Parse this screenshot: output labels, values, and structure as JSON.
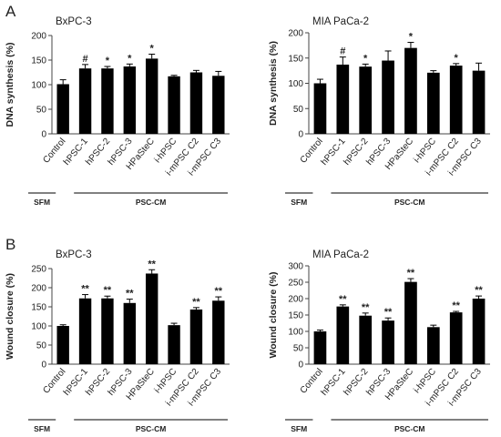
{
  "figure": {
    "group_labels": {
      "control": "SFM",
      "treated": "PSC-CM"
    }
  },
  "chart_data": [
    {
      "panel": "A",
      "type": "bar",
      "title": "BxPC-3",
      "ylabel": "DNA synthesis (%)",
      "ylim": [
        0,
        200
      ],
      "yticks": [
        0,
        50,
        100,
        150,
        200
      ],
      "categories": [
        "Control",
        "hPSC-1",
        "hPSC-2",
        "hPSC-3",
        "HPaSteC",
        "i-hPSC",
        "i-mPSC C2",
        "i-mPSC C3"
      ],
      "values": [
        101,
        133,
        133,
        137,
        153,
        117,
        125,
        118
      ],
      "errors": [
        9,
        8,
        4,
        5,
        9,
        2,
        4,
        9
      ],
      "significance": [
        "",
        "#",
        "*",
        "*",
        "*",
        "",
        "",
        ""
      ]
    },
    {
      "panel": "",
      "type": "bar",
      "title": "MIA PaCa-2",
      "ylabel": "DNA synthesis (%)",
      "ylim": [
        0,
        200
      ],
      "yticks": [
        0,
        50,
        100,
        150,
        200
      ],
      "categories": [
        "Control",
        "hPSC-1",
        "hPSC-2",
        "hPSC-3",
        "HPaSteC",
        "i-hPSC",
        "i-mPSC C2",
        "i-mPSC C3"
      ],
      "values": [
        100,
        137,
        133,
        145,
        170,
        121,
        135,
        125
      ],
      "errors": [
        8,
        15,
        5,
        19,
        11,
        4,
        4,
        15
      ],
      "significance": [
        "",
        "#",
        "*",
        "",
        "*",
        "",
        "*",
        ""
      ]
    },
    {
      "panel": "B",
      "type": "bar",
      "title": "BxPC-3",
      "ylabel": "Wound closure (%)",
      "ylim": [
        0,
        250
      ],
      "yticks": [
        0,
        50,
        100,
        150,
        200,
        250
      ],
      "categories": [
        "Control",
        "hPSC-1",
        "hPSC-2",
        "hPSC-3",
        "HPaSteC",
        "i-hPSC",
        "i-mPSC C2",
        "i-mPSC C3"
      ],
      "values": [
        100,
        172,
        172,
        160,
        237,
        102,
        143,
        166
      ],
      "errors": [
        3,
        10,
        6,
        10,
        10,
        5,
        5,
        10
      ],
      "significance": [
        "",
        "**",
        "**",
        "**",
        "**",
        "",
        "**",
        "**"
      ]
    },
    {
      "panel": "",
      "type": "bar",
      "title": "MIA PaCa-2",
      "ylabel": "Wound closure (%)",
      "ylim": [
        0,
        300
      ],
      "yticks": [
        0,
        50,
        100,
        150,
        200,
        250,
        300
      ],
      "categories": [
        "Control",
        "hPSC-1",
        "hPSC-2",
        "hPSC-3",
        "HPaSteC",
        "i-hPSC",
        "i-mPSC C2",
        "i-mPSC C3"
      ],
      "values": [
        100,
        176,
        148,
        133,
        251,
        113,
        158,
        200
      ],
      "errors": [
        4,
        5,
        8,
        8,
        10,
        6,
        3,
        8
      ],
      "significance": [
        "",
        "**",
        "**",
        "**",
        "**",
        "",
        "**",
        "**"
      ]
    }
  ]
}
